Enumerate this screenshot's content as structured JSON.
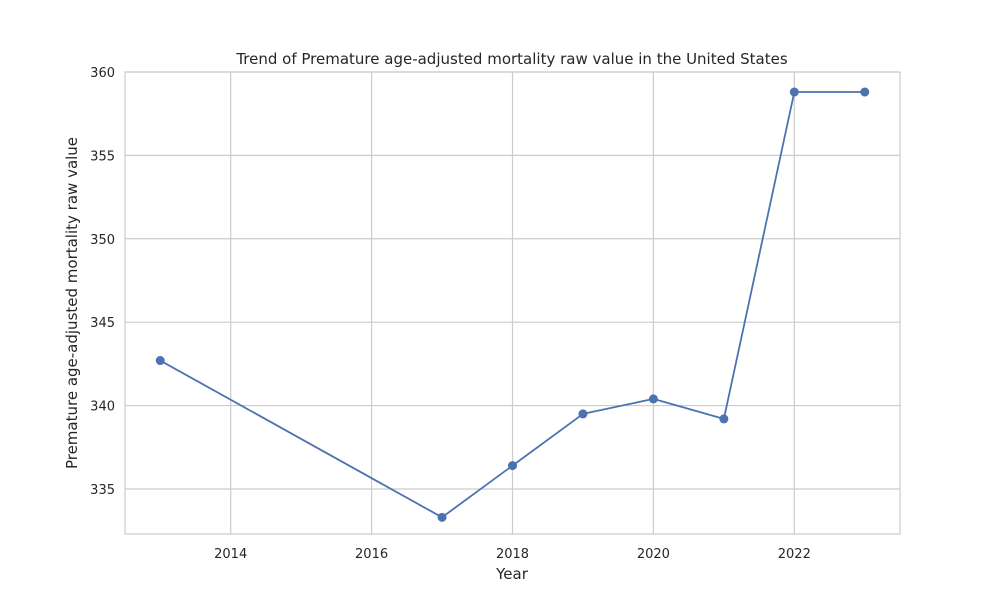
{
  "chart_data": {
    "type": "line",
    "title": "Trend of Premature age-adjusted mortality raw value in the United States",
    "xlabel": "Year",
    "ylabel": "Premature age-adjusted mortality raw value",
    "x": [
      2013,
      2017,
      2018,
      2019,
      2020,
      2021,
      2022,
      2023
    ],
    "series": [
      {
        "values": [
          342.7,
          333.3,
          336.4,
          339.5,
          340.4,
          339.2,
          358.8,
          358.8
        ]
      }
    ],
    "xlim": [
      2012.5,
      2023.5
    ],
    "ylim": [
      332.3,
      360
    ],
    "xticks": [
      "2014",
      "2016",
      "2018",
      "2020",
      "2022"
    ],
    "yticks": [
      "335",
      "340",
      "345",
      "350",
      "355",
      "360"
    ],
    "grid": true,
    "legend": "none",
    "colors": {
      "line": "#4c72b0",
      "grid": "#cccccc",
      "spine": "#cccccc",
      "text": "#262626"
    }
  }
}
